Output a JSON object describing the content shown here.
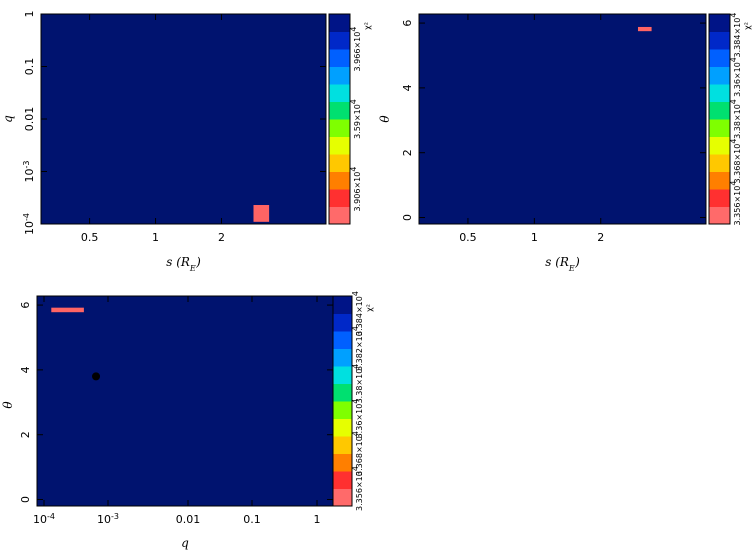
{
  "chart_data": [
    {
      "type": "heatmap",
      "xlabel": "s (R_E)",
      "ylabel": "q",
      "x_scale": "log",
      "y_scale": "log",
      "xlim": [
        0.3,
        6
      ],
      "ylim": [
        0.0001,
        1
      ],
      "xticks": [
        {
          "v": 0.5,
          "label": "0.5"
        },
        {
          "v": 1,
          "label": "1"
        },
        {
          "v": 2,
          "label": "2"
        }
      ],
      "yticks": [
        {
          "v": 1,
          "label": "1"
        },
        {
          "v": 0.1,
          "label": "0.1"
        },
        {
          "v": 0.01,
          "label": "0.01"
        },
        {
          "v": 0.001,
          "label": "10^-3"
        },
        {
          "v": 0.0001,
          "label": "10^-4"
        }
      ],
      "background_color": "#00136f",
      "highlight_cells": [
        {
          "x0": 2.8,
          "x1": 3.3,
          "y0": 0.00011,
          "y1": 0.00023,
          "color": "#ff6464"
        }
      ],
      "colorbar": {
        "title": "χ²",
        "labels": [
          "3.966×10^4",
          "3.59×10^4",
          "3.906×10^4"
        ]
      }
    },
    {
      "type": "heatmap",
      "xlabel": "s (R_E)",
      "ylabel": "θ",
      "x_scale": "log",
      "y_scale": "linear",
      "xlim": [
        0.3,
        6
      ],
      "ylim": [
        -0.2,
        6.28
      ],
      "xticks": [
        {
          "v": 0.5,
          "label": "0.5"
        },
        {
          "v": 1,
          "label": "1"
        },
        {
          "v": 2,
          "label": "2"
        }
      ],
      "yticks": [
        {
          "v": 0,
          "label": "0"
        },
        {
          "v": 2,
          "label": "2"
        },
        {
          "v": 4,
          "label": "4"
        },
        {
          "v": 6,
          "label": "6"
        }
      ],
      "background_color": "#00136f",
      "highlight_cells": [
        {
          "x0": 2.95,
          "x1": 3.4,
          "y0": 5.75,
          "y1": 5.88,
          "color": "#ff6464"
        }
      ],
      "colorbar": {
        "title": "χ²",
        "labels": [
          "3.384×10^4",
          "3.36×10^4",
          "3.38×10^4",
          "3.368×10^4",
          "3.356×10^4"
        ]
      }
    },
    {
      "type": "heatmap",
      "xlabel": "q",
      "ylabel": "θ",
      "x_scale": "custom",
      "y_scale": "linear",
      "ylim": [
        -0.2,
        6.28
      ],
      "xticks": [
        {
          "v": 0.0001,
          "label": "10^-4"
        },
        {
          "v": 0.001,
          "label": "10^-3"
        },
        {
          "v": 0.01,
          "label": "0.01"
        },
        {
          "v": 0.1,
          "label": "0.1"
        },
        {
          "v": 1,
          "label": "1"
        }
      ],
      "yticks": [
        {
          "v": 0,
          "label": "0"
        },
        {
          "v": 2,
          "label": "2"
        },
        {
          "v": 4,
          "label": "4"
        },
        {
          "v": 6,
          "label": "6"
        }
      ],
      "background_color": "#00136f",
      "highlight_cells": [
        {
          "x0": 0.00013,
          "x1": 0.00042,
          "y0": 5.78,
          "y1": 5.92,
          "color": "#ff6464"
        }
      ],
      "points": [
        {
          "x": 0.00065,
          "y": 3.8,
          "color": "#000000"
        }
      ],
      "colorbar": {
        "title": "χ²",
        "labels": [
          "3.384×10^4",
          "3.382×10^4",
          "3.38×10^4",
          "3.36×10^4",
          "3.368×10^4",
          "3.356×10^4"
        ]
      }
    }
  ]
}
